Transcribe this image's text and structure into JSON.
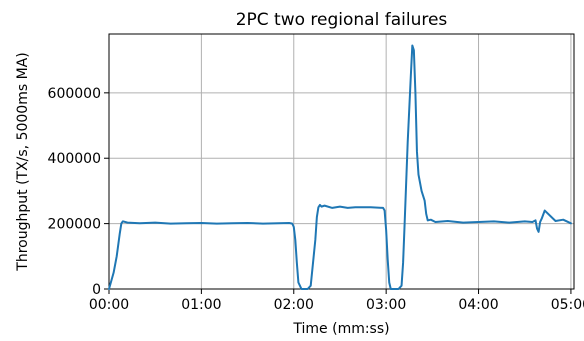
{
  "chart_data": {
    "type": "line",
    "title": "2PC two regional failures",
    "xlabel": "Time (mm:ss)",
    "ylabel": "Throughput (TX/s, 5000ms MA)",
    "xlim": [
      0,
      302
    ],
    "ylim": [
      0,
      780000
    ],
    "grid": true,
    "x_ticks": [
      {
        "value": 0,
        "label": "00:00"
      },
      {
        "value": 60,
        "label": "01:00"
      },
      {
        "value": 120,
        "label": "02:00"
      },
      {
        "value": 180,
        "label": "03:00"
      },
      {
        "value": 240,
        "label": "04:00"
      },
      {
        "value": 300,
        "label": "05:00"
      }
    ],
    "y_ticks": [
      {
        "value": 0,
        "label": "0"
      },
      {
        "value": 200000,
        "label": "200000"
      },
      {
        "value": 400000,
        "label": "400000"
      },
      {
        "value": 600000,
        "label": "600000"
      }
    ],
    "series": [
      {
        "color": "#1f77b4",
        "x": [
          0,
          3,
          5,
          7,
          8,
          9,
          12,
          20,
          30,
          40,
          50,
          60,
          70,
          80,
          90,
          100,
          110,
          117,
          119,
          120,
          121,
          122,
          123,
          125,
          129,
          131,
          134,
          135,
          136,
          137,
          138,
          140,
          145,
          150,
          155,
          160,
          170,
          178,
          179,
          180,
          181,
          182,
          183,
          185,
          188,
          190,
          191,
          192,
          194,
          196,
          197,
          198,
          199,
          200,
          201,
          203,
          205,
          206,
          207,
          209,
          212,
          220,
          230,
          240,
          250,
          260,
          270,
          275,
          277,
          278,
          279,
          280,
          281,
          283,
          290,
          295,
          300
        ],
        "y": [
          0,
          50000,
          100000,
          170000,
          200000,
          207000,
          203000,
          201000,
          203000,
          200000,
          201000,
          202000,
          200000,
          201000,
          202000,
          200000,
          201000,
          202000,
          200000,
          190000,
          150000,
          80000,
          20000,
          0,
          0,
          10000,
          150000,
          220000,
          250000,
          257000,
          252000,
          255000,
          248000,
          252000,
          248000,
          250000,
          250000,
          248000,
          240000,
          180000,
          90000,
          20000,
          0,
          0,
          0,
          10000,
          80000,
          200000,
          450000,
          650000,
          745000,
          730000,
          600000,
          420000,
          350000,
          300000,
          270000,
          230000,
          210000,
          212000,
          205000,
          208000,
          203000,
          205000,
          207000,
          203000,
          207000,
          205000,
          210000,
          185000,
          175000,
          205000,
          215000,
          240000,
          208000,
          212000,
          201000
        ]
      }
    ]
  }
}
